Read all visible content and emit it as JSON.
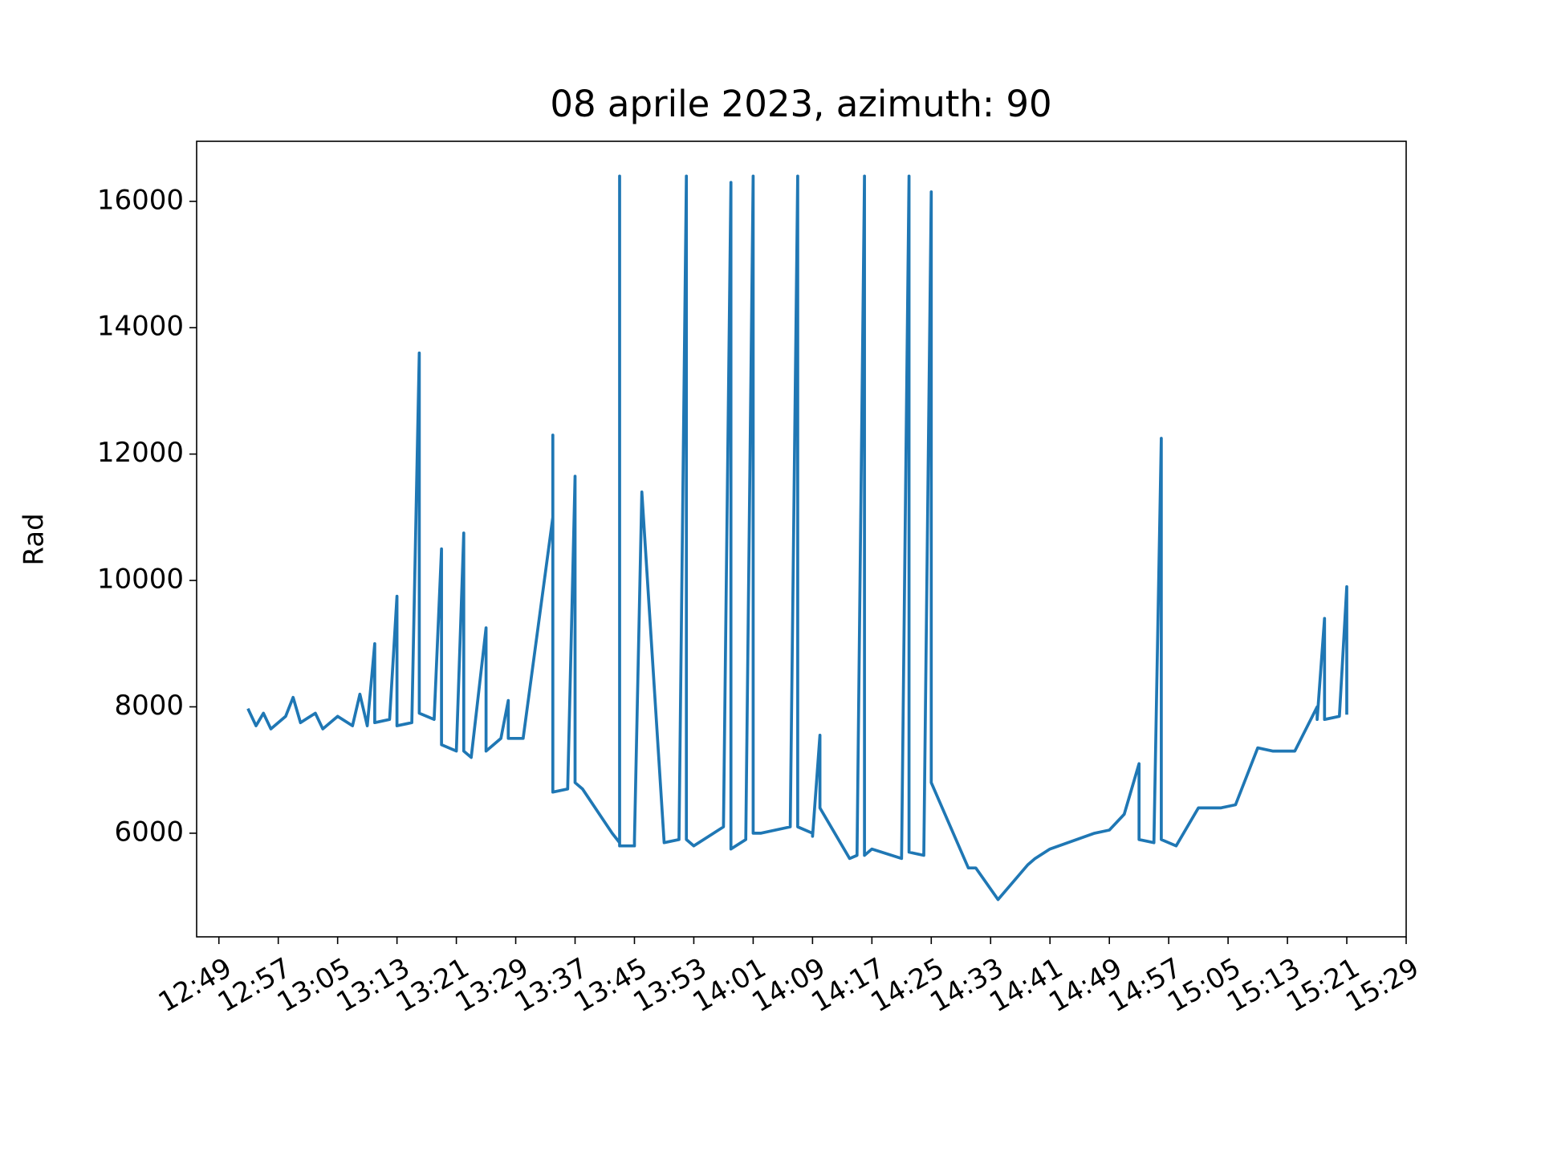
{
  "chart_data": {
    "type": "line",
    "title": "08 aprile 2023, azimuth: 90",
    "ylabel": "Rad",
    "color": "#1f77b4",
    "grid": false,
    "xlim": [
      "12:46",
      "15:29"
    ],
    "xticks": [
      "12:49",
      "12:57",
      "13:05",
      "13:13",
      "13:21",
      "13:29",
      "13:37",
      "13:45",
      "13:53",
      "14:01",
      "14:09",
      "14:17",
      "14:25",
      "14:33",
      "14:41",
      "14:49",
      "14:57",
      "15:05",
      "15:13",
      "15:21",
      "15:29"
    ],
    "ylim": [
      4360,
      16950
    ],
    "yticks": [
      6000,
      8000,
      10000,
      12000,
      14000,
      16000
    ],
    "x": [
      "12:53",
      "12:54",
      "12:55",
      "12:56",
      "12:58",
      "12:59",
      "13:00",
      "13:02",
      "13:03",
      "13:05",
      "13:07",
      "13:08",
      "13:09",
      "13:10",
      "13:10",
      "13:12",
      "13:13",
      "13:13",
      "13:15",
      "13:16",
      "13:16",
      "13:18",
      "13:19",
      "13:19",
      "13:21",
      "13:22",
      "13:22",
      "13:23",
      "13:25",
      "13:25",
      "13:27",
      "13:28",
      "13:28",
      "13:30",
      "13:34",
      "13:34",
      "13:34",
      "13:36",
      "13:37",
      "13:37",
      "13:38",
      "13:42",
      "13:43",
      "13:43",
      "13:43",
      "13:45",
      "13:45",
      "13:46",
      "13:49",
      "13:51",
      "13:52",
      "13:52",
      "13:53",
      "13:57",
      "13:58",
      "13:58",
      "14:00",
      "14:01",
      "14:01",
      "14:02",
      "14:06",
      "14:07",
      "14:07",
      "14:09",
      "14:09",
      "14:10",
      "14:10",
      "14:14",
      "14:15",
      "14:16",
      "14:16",
      "14:17",
      "14:21",
      "14:22",
      "14:22",
      "14:24",
      "14:25",
      "14:25",
      "14:30",
      "14:31",
      "14:34",
      "14:38",
      "14:39",
      "14:41",
      "14:47",
      "14:49",
      "14:51",
      "14:53",
      "14:53",
      "14:55",
      "14:56",
      "14:56",
      "14:58",
      "15:01",
      "15:03",
      "15:04",
      "15:06",
      "15:09",
      "15:11",
      "15:14",
      "15:17",
      "15:17",
      "15:18",
      "15:18",
      "15:20",
      "15:21",
      "15:21"
    ],
    "values": [
      7950,
      7700,
      7900,
      7650,
      7850,
      8150,
      7750,
      7900,
      7650,
      7850,
      7700,
      8200,
      7700,
      9000,
      7750,
      7800,
      9750,
      7700,
      7750,
      13600,
      7900,
      7800,
      10500,
      7400,
      7300,
      10750,
      7300,
      7200,
      9250,
      7300,
      7500,
      8100,
      7500,
      7500,
      11000,
      12300,
      6650,
      6700,
      11650,
      6800,
      6700,
      6000,
      5850,
      16400,
      5800,
      5800,
      5900,
      11400,
      5850,
      5900,
      16400,
      5900,
      5800,
      6100,
      16300,
      5750,
      5900,
      16400,
      6000,
      6000,
      6100,
      16400,
      6100,
      6000,
      5950,
      7550,
      6400,
      5600,
      5650,
      16400,
      5650,
      5750,
      5600,
      16400,
      5700,
      5650,
      16150,
      6800,
      5450,
      5450,
      4950,
      5500,
      5600,
      5750,
      6000,
      6050,
      6300,
      7100,
      5900,
      5850,
      12250,
      5900,
      5800,
      6400,
      6400,
      6400,
      6450,
      7350,
      7300,
      7300,
      8000,
      7800,
      9400,
      7800,
      7850,
      9900,
      7900
    ]
  }
}
